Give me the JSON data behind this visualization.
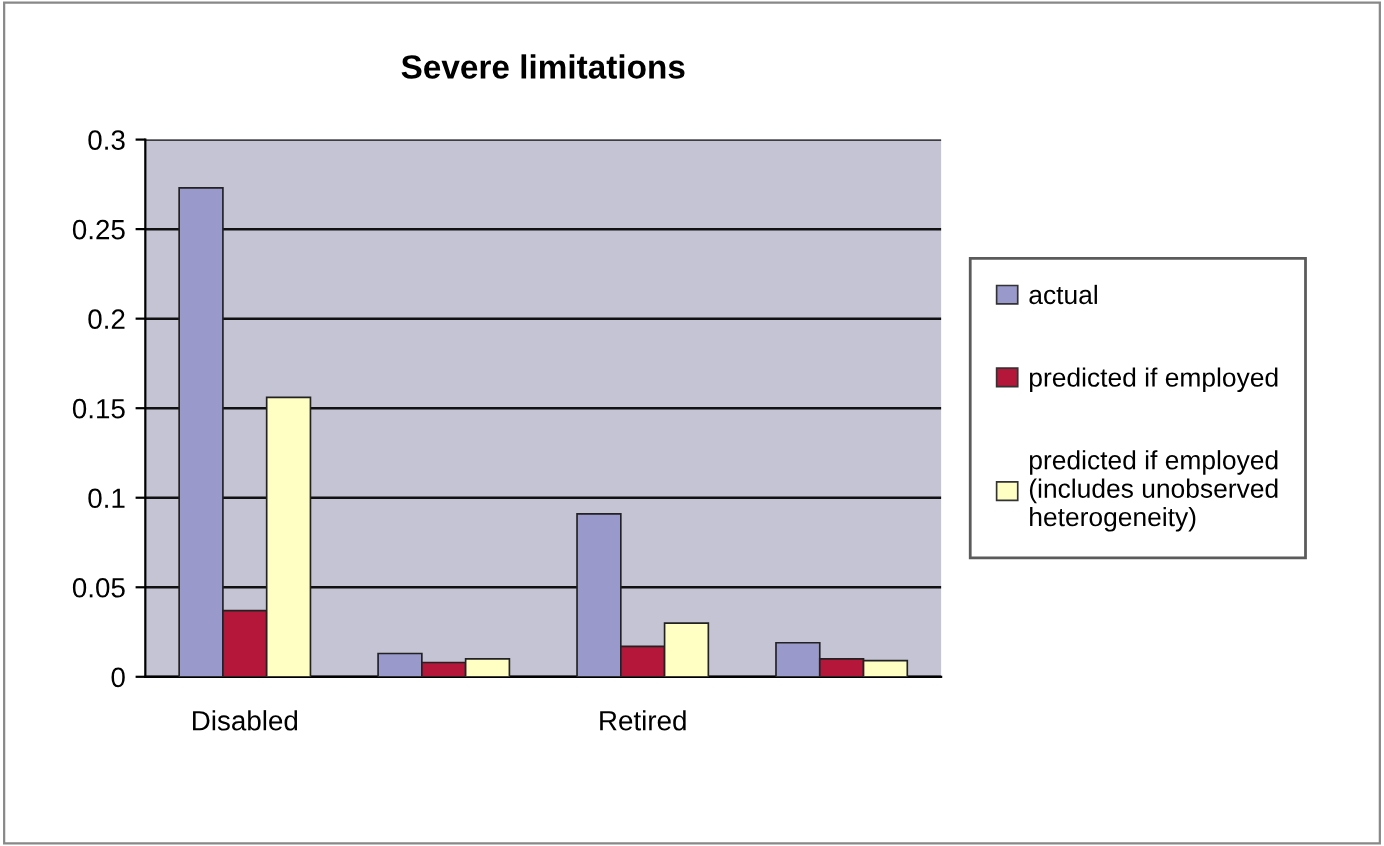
{
  "chart_data": {
    "type": "bar",
    "title": "Severe limitations",
    "categories": [
      "Disabled",
      null,
      "Retired",
      null
    ],
    "series": [
      {
        "name": "actual",
        "color": "#9999cc",
        "values": [
          0.273,
          0.013,
          0.091,
          0.019
        ]
      },
      {
        "name": "predicted if employed",
        "color": "#b5173a",
        "values": [
          0.037,
          0.008,
          0.017,
          0.01
        ]
      },
      {
        "name": "predicted if employed\n(includes unobserved\nheterogeneity)",
        "color": "#ffffc4",
        "values": [
          0.156,
          0.01,
          0.03,
          0.009
        ]
      }
    ],
    "ylim": [
      0,
      0.3
    ],
    "yticks": [
      0,
      0.05,
      0.1,
      0.15,
      0.2,
      0.25,
      0.3
    ],
    "grid": "y",
    "legend": "right"
  }
}
